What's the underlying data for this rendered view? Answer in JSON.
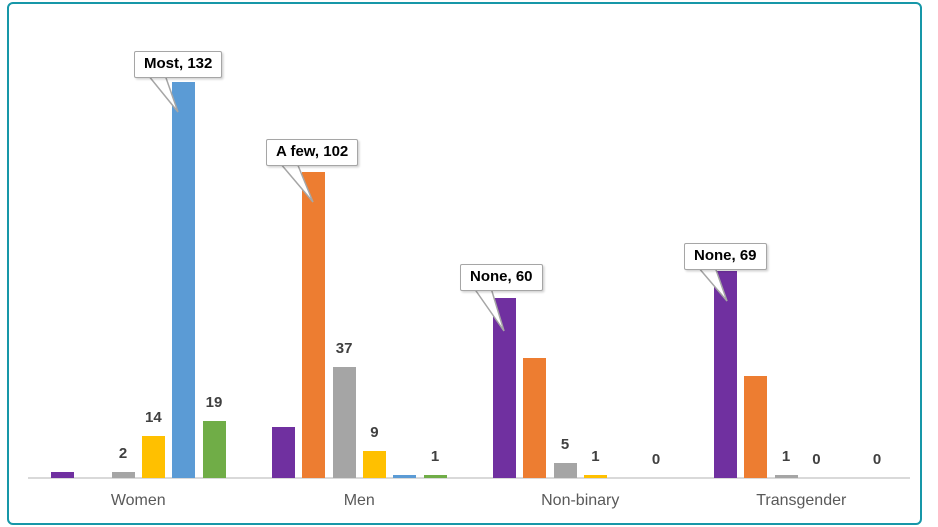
{
  "chart_data": {
    "type": "bar",
    "title": "",
    "xlabel": "",
    "ylabel": "",
    "categories": [
      "Women",
      "Men",
      "Non-binary",
      "Transgender"
    ],
    "series": [
      {
        "key": "purple",
        "color": "#7030A0",
        "values": [
          2,
          17,
          60,
          69
        ]
      },
      {
        "key": "orange",
        "color": "#ED7D31",
        "values": [
          0,
          102,
          40,
          34
        ]
      },
      {
        "key": "gray",
        "color": "#A5A5A5",
        "values": [
          2,
          37,
          5,
          1
        ]
      },
      {
        "key": "yellow",
        "color": "#FFC000",
        "values": [
          14,
          9,
          1,
          0
        ]
      },
      {
        "key": "blue",
        "color": "#5B9BD5",
        "values": [
          132,
          1,
          0,
          0
        ]
      },
      {
        "key": "green",
        "color": "#70AD47",
        "values": [
          19,
          1,
          0,
          0
        ]
      }
    ],
    "labeled_series": [
      "gray",
      "yellow",
      "green"
    ],
    "callouts": [
      {
        "text": "Most, 132",
        "category": "Women",
        "series": "blue"
      },
      {
        "text": "A few, 102",
        "category": "Men",
        "series": "orange"
      },
      {
        "text": "None, 60",
        "category": "Non-binary",
        "series": "purple"
      },
      {
        "text": "None, 69",
        "category": "Transgender",
        "series": "purple"
      }
    ],
    "ylim": [
      0,
      132
    ],
    "legend": "none",
    "gridlines": false,
    "colors": {
      "frame_border": "#1697A8",
      "axis_line": "#D9D9D9",
      "data_label": "#404040",
      "category_label": "#595959",
      "callout_border": "#A6A6A6",
      "callout_bg": "#FFFFFF",
      "callout_text": "#000000",
      "background": "#FFFFFF"
    }
  }
}
